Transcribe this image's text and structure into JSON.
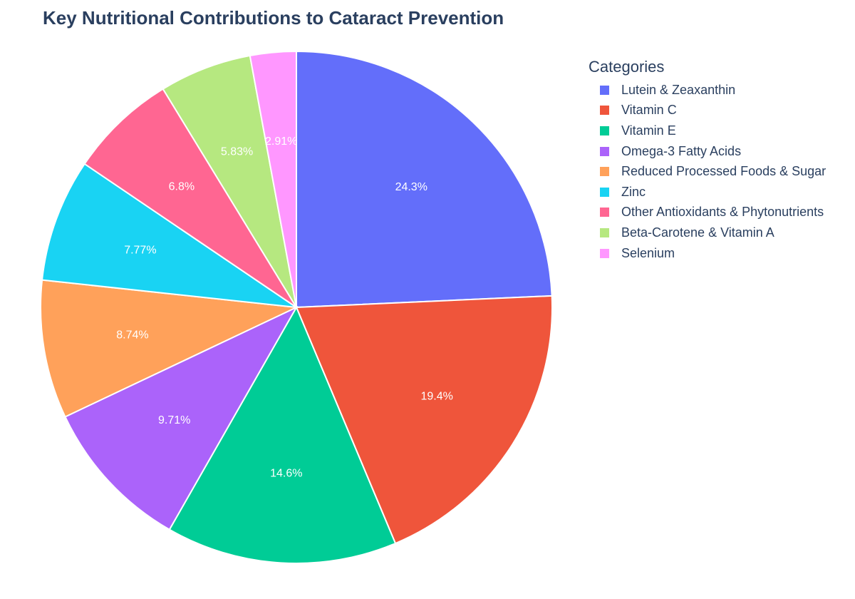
{
  "chart_data": {
    "type": "pie",
    "title": "Key Nutritional Contributions to Cataract Prevention",
    "legend_title": "Categories",
    "legend_position": "top-right",
    "sort": "descending",
    "direction": "clockwise",
    "slices": [
      {
        "label": "Lutein & Zeaxanthin",
        "value": 24.3,
        "text": "24.3%",
        "color": "#636efa"
      },
      {
        "label": "Vitamin C",
        "value": 19.4,
        "text": "19.4%",
        "color": "#ef553b"
      },
      {
        "label": "Vitamin E",
        "value": 14.6,
        "text": "14.6%",
        "color": "#00cc96"
      },
      {
        "label": "Omega-3 Fatty Acids",
        "value": 9.71,
        "text": "9.71%",
        "color": "#ab63fa"
      },
      {
        "label": "Reduced Processed Foods & Sugar",
        "value": 8.74,
        "text": "8.74%",
        "color": "#ffa15a"
      },
      {
        "label": "Zinc",
        "value": 7.77,
        "text": "7.77%",
        "color": "#19d3f3"
      },
      {
        "label": "Other Antioxidants & Phytonutrients",
        "value": 6.8,
        "text": "6.8%",
        "color": "#ff6692"
      },
      {
        "label": "Beta-Carotene & Vitamin A",
        "value": 5.83,
        "text": "5.83%",
        "color": "#b6e880"
      },
      {
        "label": "Selenium",
        "value": 2.91,
        "text": "2.91%",
        "color": "#ff97ff"
      }
    ]
  }
}
